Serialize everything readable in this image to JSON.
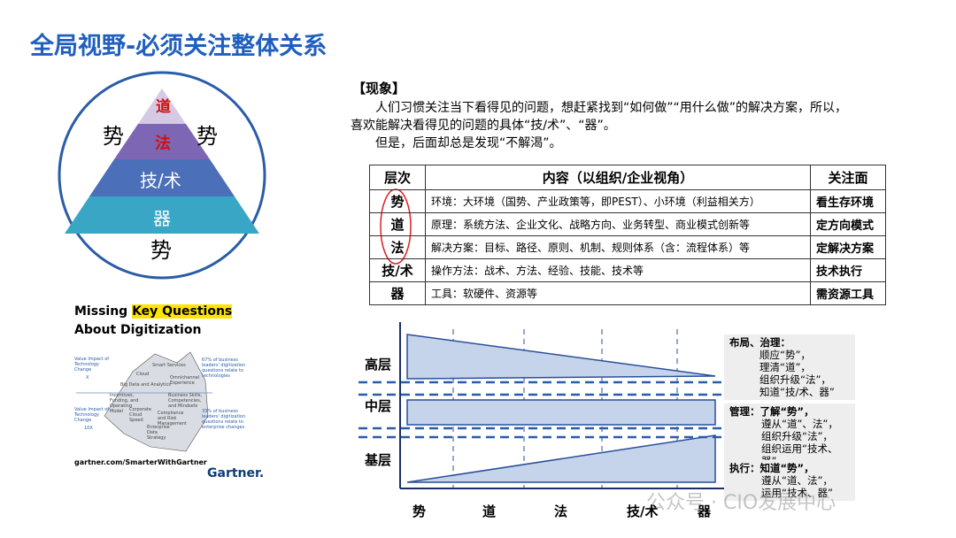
{
  "header": {
    "title": "全局视野-必须关注整体关系"
  },
  "pyramid": {
    "levels": [
      "道",
      "法",
      "技/术",
      "器"
    ],
    "side_left": "势",
    "side_right": "势",
    "bottom": "势"
  },
  "gartner": {
    "title_part1": "Missing ",
    "title_highlight": "Key Questions",
    "title_line2": "About Digitization",
    "left_top": "Value Impact of Technology Change",
    "left_top_factor": "X",
    "left_bottom": "Value Impact of Technology Change",
    "left_bottom_factor": "10X",
    "right_top": "67% of business leaders' digitization questions relate to technologies",
    "right_bottom": "33% of business leaders' digitization questions relate to enterprise changes",
    "iceberg": [
      "Smart Services",
      "Cloud",
      "Omnichannel Experience",
      "Big Data and Analytics",
      "Incentives, Funding, and Operating Model",
      "Business Skills, Competencies, and Mindsets",
      "Corporate Cloud Speed",
      "Compliance and Risk Management",
      "Enterprise Data Strategy"
    ],
    "url": "gartner.com/SmarterWithGartner",
    "brand": "Gartner."
  },
  "phenomenon": {
    "heading": "【现象】",
    "lines": [
      "人们习惯关注当下看得见的问题，想赶紧找到“如何做”“用什么做”的解决方案，所以，",
      "喜欢能解决看得见的问题的具体“技/术”、“器”。",
      "但是，后面却总是发现“不解渴”。"
    ]
  },
  "table": {
    "header": [
      "层次",
      "内容（以组织/企业视角）",
      "关注面"
    ],
    "rows": [
      [
        "势",
        "环境：大环境（国势、产业政策等，即PEST）、小环境（利益相关方）",
        "看生存环境"
      ],
      [
        "道",
        "原理：系统方法、企业文化、战略方向、业务转型、商业模式创新等",
        "定方向模式"
      ],
      [
        "法",
        "解决方案：目标、路径、原则、机制、规则体系（含：流程体系）等",
        "定解决方案"
      ],
      [
        "技/术",
        "操作方法：战术、方法、经验、技能、技术等",
        "技术执行"
      ],
      [
        "器",
        "工具：软硬件、资源等",
        "需资源工具"
      ]
    ]
  },
  "diagram": {
    "layers": [
      "高层",
      "中层",
      "基层"
    ],
    "axis": [
      "势",
      "道",
      "法",
      "技/术",
      "器"
    ],
    "notes": [
      [
        "布局、治理：",
        "顺应“势”，",
        "理清“道”，",
        "组织升级“法”，",
        "知道“技/术、器”"
      ],
      [
        "管理：了解“势”，",
        "遵从“道”、法”，",
        "组织升级“法”，",
        "组织运用“技术、器”"
      ],
      [
        "执行：知道“势”，",
        "遵从“道、法”，",
        "运用“技术、器”"
      ]
    ]
  },
  "watermark": "公众号 · CIO发展中心"
}
